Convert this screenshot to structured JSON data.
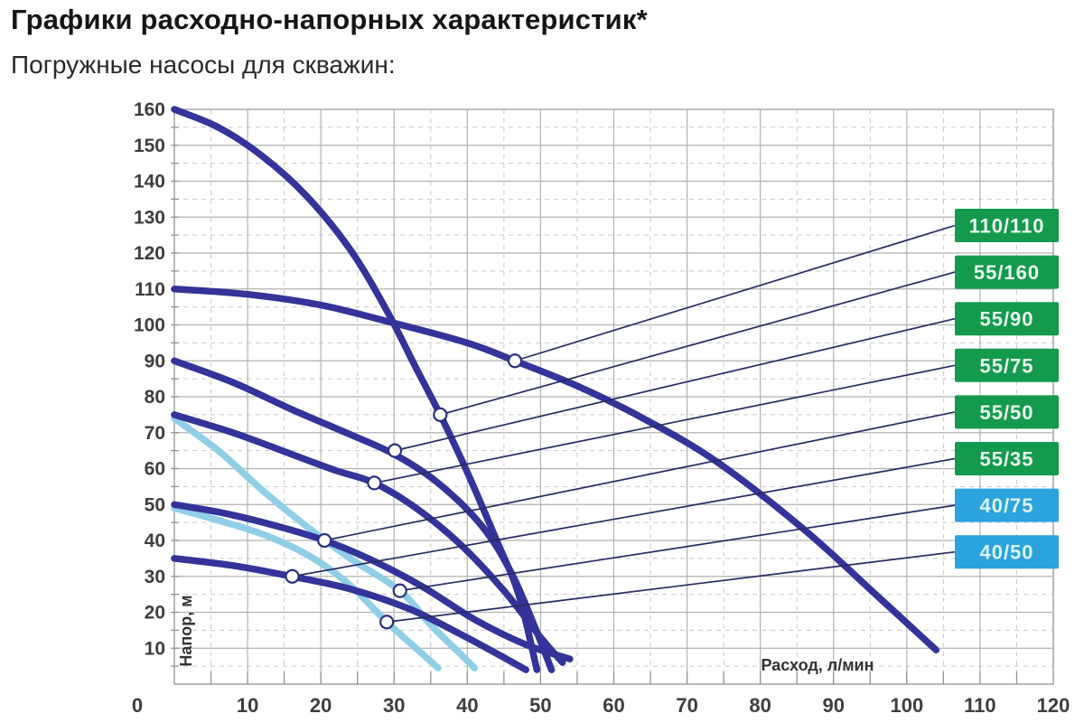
{
  "page": {
    "title": "Графики расходно-напорных характеристик*",
    "subtitle": "Погружные насосы для скважин:"
  },
  "chart_data": {
    "type": "line",
    "title": "Графики расходно-напорных характеристик",
    "xlabel": "Расход, л/мин",
    "ylabel": "Напор, м",
    "xlim": [
      0,
      120
    ],
    "ylim": [
      0,
      160
    ],
    "x_ticks": [
      0,
      10,
      20,
      30,
      40,
      50,
      60,
      70,
      80,
      90,
      100,
      110,
      120
    ],
    "y_ticks": [
      10,
      20,
      30,
      40,
      50,
      60,
      70,
      80,
      90,
      100,
      110,
      120,
      130,
      140,
      150,
      160
    ],
    "grid": {
      "major_every": 10,
      "minor_every": 5,
      "major_color": "#b2b2b2",
      "minor_color": "#c9c9c9",
      "frame_color": "#9b9b9b",
      "tick_color": "#8f8f8f"
    },
    "legend": {
      "position": "right"
    },
    "leader": {
      "color": "#272c63",
      "width": 1.7,
      "marker_radius": 7,
      "marker_stroke": "#2c3080",
      "marker_fill": "#ffffff"
    },
    "series": [
      {
        "label": "110/110",
        "layer": "front",
        "line_color": "#333399",
        "badge_color": "#149a4d",
        "badge_text_color": "#eaf8ef",
        "marker": [
          46.5,
          90
        ],
        "points": [
          [
            0,
            110
          ],
          [
            10,
            108.5
          ],
          [
            20,
            105.5
          ],
          [
            30,
            100.5
          ],
          [
            40,
            95
          ],
          [
            46.5,
            90
          ],
          [
            55,
            83
          ],
          [
            64,
            74
          ],
          [
            74,
            62
          ],
          [
            86,
            43
          ],
          [
            96,
            24.5
          ],
          [
            104,
            9.5
          ]
        ]
      },
      {
        "label": "55/160",
        "layer": "front",
        "line_color": "#333399",
        "badge_color": "#149a4d",
        "badge_text_color": "#eaf8ef",
        "marker": [
          36.3,
          75
        ],
        "points": [
          [
            0,
            160
          ],
          [
            6,
            155
          ],
          [
            12,
            147
          ],
          [
            18,
            136
          ],
          [
            24,
            121
          ],
          [
            29,
            104
          ],
          [
            33,
            88
          ],
          [
            36.3,
            75
          ],
          [
            40,
            59
          ],
          [
            44,
            40
          ],
          [
            47,
            25
          ],
          [
            49.5,
            4
          ]
        ]
      },
      {
        "label": "55/90",
        "layer": "front",
        "line_color": "#333399",
        "badge_color": "#149a4d",
        "badge_text_color": "#eaf8ef",
        "marker": [
          30.1,
          65
        ],
        "points": [
          [
            0,
            90
          ],
          [
            8,
            84
          ],
          [
            16,
            76.5
          ],
          [
            24,
            69.5
          ],
          [
            30,
            64
          ],
          [
            36,
            56
          ],
          [
            42,
            44
          ],
          [
            46,
            31
          ],
          [
            49,
            17
          ],
          [
            51.5,
            4
          ]
        ]
      },
      {
        "label": "55/75",
        "layer": "front",
        "line_color": "#333399",
        "badge_color": "#149a4d",
        "badge_text_color": "#eaf8ef",
        "marker": [
          27.3,
          56
        ],
        "points": [
          [
            0,
            75
          ],
          [
            8,
            70
          ],
          [
            16,
            64
          ],
          [
            22,
            59.5
          ],
          [
            27.3,
            56
          ],
          [
            33,
            49
          ],
          [
            39,
            39
          ],
          [
            45,
            26
          ],
          [
            50,
            13
          ],
          [
            53,
            6
          ]
        ]
      },
      {
        "label": "55/50",
        "layer": "front",
        "line_color": "#333399",
        "badge_color": "#149a4d",
        "badge_text_color": "#eaf8ef",
        "marker": [
          20.5,
          40
        ],
        "points": [
          [
            0,
            50
          ],
          [
            7,
            47.5
          ],
          [
            14,
            44
          ],
          [
            20.5,
            40
          ],
          [
            27,
            34.5
          ],
          [
            34,
            27
          ],
          [
            41,
            18
          ],
          [
            48,
            11
          ],
          [
            54,
            7
          ]
        ]
      },
      {
        "label": "55/35",
        "layer": "front",
        "line_color": "#333399",
        "badge_color": "#149a4d",
        "badge_text_color": "#eaf8ef",
        "marker": [
          16.1,
          30
        ],
        "points": [
          [
            0,
            35
          ],
          [
            8,
            33
          ],
          [
            16,
            30
          ],
          [
            24,
            26.5
          ],
          [
            32,
            21
          ],
          [
            39,
            14
          ],
          [
            44,
            8.5
          ],
          [
            48,
            4
          ]
        ]
      },
      {
        "label": "40/75",
        "layer": "back",
        "line_color": "#8fcfe8",
        "badge_color": "#2ba3dc",
        "badge_text_color": "#dcf2fb",
        "marker": [
          30.8,
          26
        ],
        "points": [
          [
            0,
            74
          ],
          [
            6,
            65
          ],
          [
            12,
            54
          ],
          [
            18,
            44
          ],
          [
            24,
            35
          ],
          [
            30.8,
            26
          ],
          [
            35,
            16.5
          ],
          [
            38.5,
            9.5
          ],
          [
            41,
            4.5
          ]
        ]
      },
      {
        "label": "40/50",
        "layer": "back",
        "line_color": "#8fcfe8",
        "badge_color": "#2ba3dc",
        "badge_text_color": "#dcf2fb",
        "marker": [
          29,
          17.3
        ],
        "points": [
          [
            0,
            49
          ],
          [
            7,
            45
          ],
          [
            13,
            41
          ],
          [
            19,
            35
          ],
          [
            24,
            27.5
          ],
          [
            29,
            17.3
          ],
          [
            33,
            10
          ],
          [
            36,
            4.5
          ]
        ]
      }
    ]
  }
}
